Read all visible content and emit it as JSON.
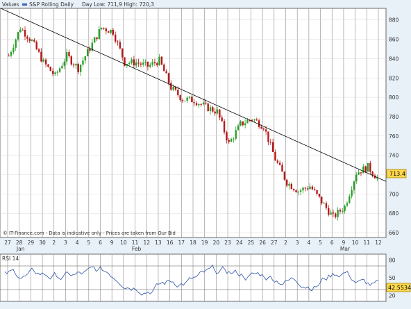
{
  "header": {
    "values_label": "Values",
    "series_label": "S&P Rolling Daily",
    "day_label": "Day Low: 711,9 High: 720,3"
  },
  "footer_note": "© IT-Finance.com - Data is indicative only - Prices are taken from Our Bid",
  "last_value_label": "713.4",
  "rsi": {
    "label": "RSI 14",
    "value_label": "42.5534",
    "ylim": [
      10,
      90
    ],
    "ticks": [
      20,
      50,
      80
    ],
    "upper": 70,
    "lower": 30
  },
  "x_labels": [
    "27",
    "28",
    "29",
    "30",
    "2",
    "3",
    "4",
    "5",
    "6",
    "9",
    "10",
    "11",
    "12",
    "13",
    "16",
    "17",
    "18",
    "19",
    "20",
    "23",
    "24",
    "25",
    "26",
    "27",
    "2",
    "3",
    "4",
    "5",
    "6",
    "9",
    "10",
    "11",
    "12"
  ],
  "month_labels": [
    {
      "label": "Jan",
      "index": 1
    },
    {
      "label": "Feb",
      "index": 11
    },
    {
      "label": "Mar",
      "index": 29
    }
  ],
  "colors": {
    "background": "#ffffff",
    "grid": "#8a8a8a",
    "candle_up": "#2aa02a",
    "candle_down": "#b81818",
    "rsi_line": "#2b4fa8",
    "trendline": "#000000",
    "accent_box": "#ffd84d",
    "series_marker": "#3a5fb8"
  },
  "chart_data": {
    "type": "line",
    "title": "S&P Rolling Daily",
    "ylim": [
      655,
      892
    ],
    "yticks": [
      660,
      680,
      700,
      720,
      740,
      760,
      780,
      800,
      820,
      840,
      860,
      880
    ],
    "grid": true,
    "categories": [
      "27",
      "28",
      "29",
      "30",
      "2",
      "3",
      "4",
      "5",
      "6",
      "9",
      "10",
      "11",
      "12",
      "13",
      "16",
      "17",
      "18",
      "19",
      "20",
      "23",
      "24",
      "25",
      "26",
      "27",
      "2",
      "3",
      "4",
      "5",
      "6",
      "9",
      "10",
      "11",
      "12"
    ],
    "series": [
      {
        "name": "S&P Rolling Daily",
        "values": [
          843,
          872,
          858,
          836,
          822,
          843,
          830,
          851,
          872,
          868,
          836,
          836,
          832,
          838,
          810,
          798,
          797,
          790,
          785,
          752,
          772,
          778,
          770,
          736,
          712,
          703,
          708,
          692,
          676,
          687,
          722,
          728,
          713.4
        ]
      }
    ],
    "trendline": {
      "start": [
        "27",
        892
      ],
      "end": [
        "12",
        713
      ]
    },
    "last_value": 713.4,
    "day_low": 711.9,
    "day_high": 720.3
  }
}
